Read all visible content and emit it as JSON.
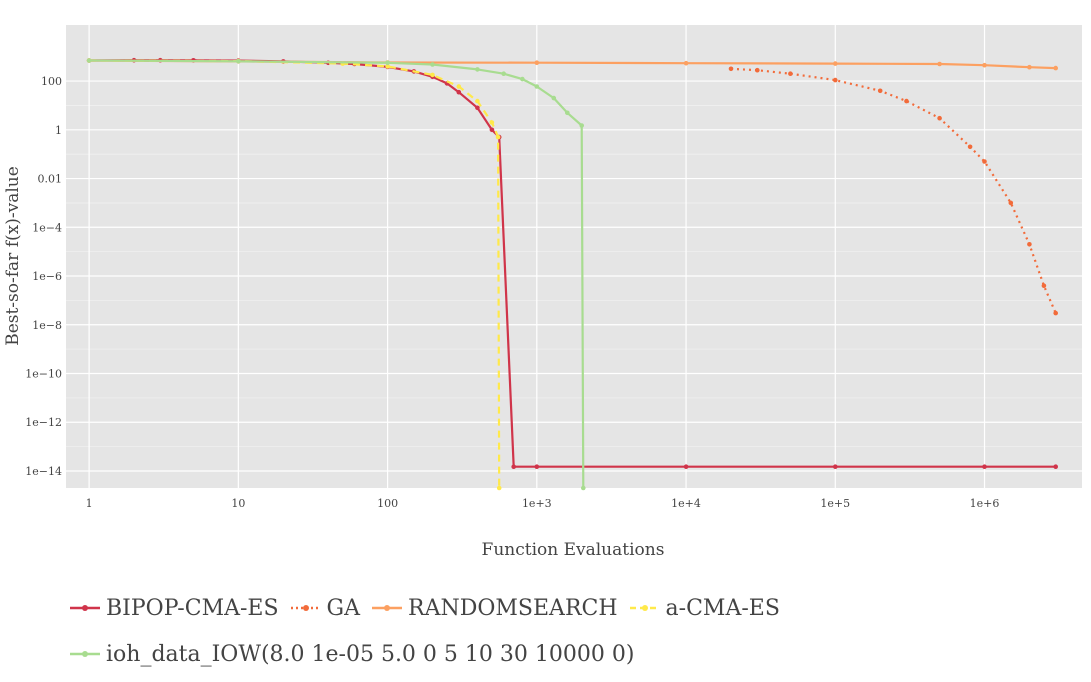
{
  "chart_data": {
    "type": "line",
    "title": "",
    "xlabel": "Function Evaluations",
    "ylabel": "Best-so-far f(x)-value",
    "x_scale": "log",
    "y_scale": "log",
    "xlim": [
      0.7,
      4500000
    ],
    "ylim": [
      2e-15,
      20000
    ],
    "grid": true,
    "legend_position": "bottom",
    "x_ticks": [
      {
        "value": 1,
        "label": "1"
      },
      {
        "value": 10,
        "label": "10"
      },
      {
        "value": 100,
        "label": "100"
      },
      {
        "value": 1000,
        "label": "1e+3"
      },
      {
        "value": 10000,
        "label": "1e+4"
      },
      {
        "value": 100000,
        "label": "1e+5"
      },
      {
        "value": 1000000,
        "label": "1e+6"
      }
    ],
    "y_ticks": [
      {
        "value": 100,
        "label": "100"
      },
      {
        "value": 1,
        "label": "1"
      },
      {
        "value": 0.01,
        "label": "0.01"
      },
      {
        "value": 0.0001,
        "label": "1e−4"
      },
      {
        "value": 1e-06,
        "label": "1e−6"
      },
      {
        "value": 1e-08,
        "label": "1e−8"
      },
      {
        "value": 1e-10,
        "label": "1e−10"
      },
      {
        "value": 1e-12,
        "label": "1e−12"
      },
      {
        "value": 1e-14,
        "label": "1e−14"
      }
    ],
    "series": [
      {
        "name": "BIPOP-CMA-ES",
        "color": "#d0344a",
        "dash": "solid",
        "points": [
          [
            1,
            700
          ],
          [
            2,
            720
          ],
          [
            3,
            720
          ],
          [
            5,
            710
          ],
          [
            10,
            690
          ],
          [
            20,
            640
          ],
          [
            40,
            560
          ],
          [
            60,
            500
          ],
          [
            100,
            380
          ],
          [
            150,
            250
          ],
          [
            200,
            150
          ],
          [
            250,
            80
          ],
          [
            300,
            35
          ],
          [
            400,
            8
          ],
          [
            500,
            1.0
          ],
          [
            560,
            0.5
          ],
          [
            700,
            1.5e-14
          ],
          [
            1000,
            1.5e-14
          ],
          [
            10000,
            1.5e-14
          ],
          [
            100000,
            1.5e-14
          ],
          [
            1000000,
            1.5e-14
          ],
          [
            3000000,
            1.5e-14
          ]
        ]
      },
      {
        "name": "GA",
        "color": "#f26b3a",
        "dash": "dot",
        "points": [
          [
            20000,
            320
          ],
          [
            30000,
            280
          ],
          [
            50000,
            200
          ],
          [
            100000,
            110
          ],
          [
            200000,
            40
          ],
          [
            300000,
            15
          ],
          [
            500000,
            3
          ],
          [
            800000,
            0.2
          ],
          [
            1000000,
            0.05
          ],
          [
            1500000,
            0.001
          ],
          [
            2000000,
            2e-05
          ],
          [
            2500000,
            4e-07
          ],
          [
            3000000,
            3e-08
          ]
        ]
      },
      {
        "name": "RANDOMSEARCH",
        "color": "#fca061",
        "dash": "solid",
        "points": [
          [
            1,
            700
          ],
          [
            10,
            640
          ],
          [
            100,
            580
          ],
          [
            1000,
            570
          ],
          [
            10000,
            540
          ],
          [
            100000,
            520
          ],
          [
            500000,
            500
          ],
          [
            1000000,
            450
          ],
          [
            2000000,
            370
          ],
          [
            3000000,
            340
          ]
        ]
      },
      {
        "name": "a-CMA-ES",
        "color": "#ffe94a",
        "dash": "dash",
        "points": [
          [
            1,
            700
          ],
          [
            10,
            660
          ],
          [
            50,
            520
          ],
          [
            100,
            400
          ],
          [
            200,
            180
          ],
          [
            300,
            60
          ],
          [
            400,
            15
          ],
          [
            500,
            2
          ],
          [
            550,
            0.5
          ],
          [
            560,
            2e-15
          ]
        ]
      },
      {
        "name": "ioh_data_IOW(8.0 1e-05 5.0 0 5 10 30 10000 0)",
        "color": "#a8dc90",
        "dash": "solid",
        "points": [
          [
            1,
            700
          ],
          [
            10,
            650
          ],
          [
            100,
            560
          ],
          [
            200,
            480
          ],
          [
            400,
            300
          ],
          [
            600,
            200
          ],
          [
            800,
            120
          ],
          [
            1000,
            60
          ],
          [
            1300,
            20
          ],
          [
            1600,
            5
          ],
          [
            2000,
            1.5
          ],
          [
            2050,
            2e-15
          ]
        ]
      }
    ]
  },
  "legend": {
    "rows": [
      [
        "BIPOP-CMA-ES",
        "GA",
        "RANDOMSEARCH",
        "a-CMA-ES"
      ],
      [
        "ioh_data_IOW(8.0 1e-05 5.0 0 5 10 30 10000 0)"
      ]
    ]
  }
}
